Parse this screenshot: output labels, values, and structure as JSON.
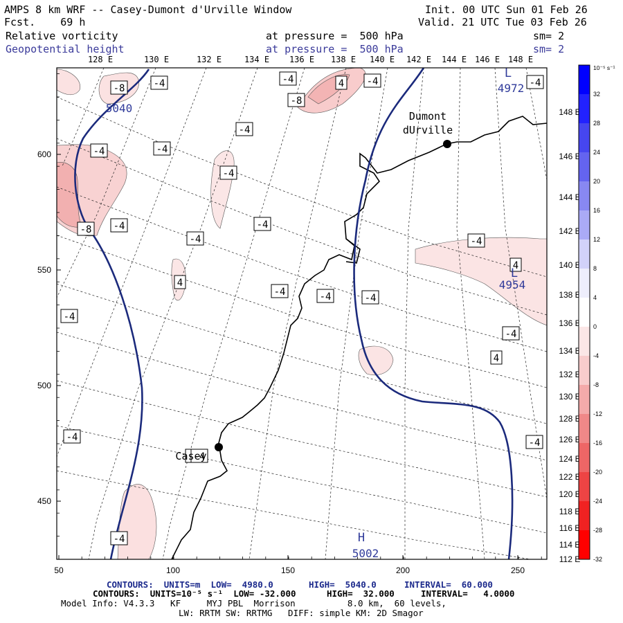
{
  "header": {
    "title": "AMPS 8 km WRF -- Casey-Dumont d'Urville Window",
    "fcst": "Fcst.    69 h",
    "init": "Init. 00 UTC Sun 01 Feb 26",
    "valid": "Valid. 21 UTC Tue 03 Feb 26",
    "field1_name": "Relative vorticity",
    "field1_pressure": "at pressure =  500 hPa",
    "field1_sm": "sm= 2",
    "field2_name": "Geopotential height",
    "field2_pressure": "at pressure =  500 hPa",
    "field2_sm": "sm= 2"
  },
  "map": {
    "x_axis_ticks": [
      "50",
      "100",
      "150",
      "200",
      "250"
    ],
    "y_axis_ticks": [
      "450",
      "500",
      "550",
      "600"
    ],
    "top_lon_labels": [
      "128 E",
      "130 E",
      "132 E",
      "134 E",
      "136 E",
      "138 E",
      "140 E",
      "142 E",
      "144 E",
      "146 E",
      "148 E"
    ],
    "right_lat_labels": [
      "148 E",
      "146 E",
      "144 E",
      "142 E",
      "140 E",
      "138 E",
      "136 E",
      "134 E",
      "132 E",
      "130 E",
      "128 E",
      "126 E",
      "124 E",
      "122 E",
      "120 E",
      "118 E",
      "116 E",
      "114 E",
      "112 E"
    ],
    "stations": [
      {
        "name_line1": "Dumont",
        "name_line2": "dUrville"
      },
      {
        "name_line1": "Casey"
      }
    ],
    "height_labels": [
      {
        "text": "5040",
        "color": "#2f3a9a"
      },
      {
        "text": "4972",
        "color": "#2f3a9a"
      },
      {
        "text": "4954",
        "color": "#2f3a9a"
      },
      {
        "text": "5002",
        "color": "#2f3a9a"
      }
    ],
    "extrema_marks": [
      {
        "text": "L",
        "color": "#2f3a9a"
      },
      {
        "text": "L",
        "color": "#2f3a9a"
      },
      {
        "text": "H",
        "color": "#2f3a9a"
      }
    ],
    "vorticity_labels": [
      "-8",
      "-4",
      "-4",
      "-8",
      "-4",
      "-4",
      "-4",
      "4",
      "-4",
      "-4",
      "-4",
      "-8",
      "-4",
      "-4",
      "-4",
      "-4",
      "4",
      "4",
      "-4",
      "-4",
      "-4",
      "-4",
      "-4",
      "4",
      "-4",
      "-4",
      "-4",
      "-4",
      "-4",
      "-4"
    ]
  },
  "colorbar": {
    "unit": "10⁻⁵ s⁻¹",
    "labels": [
      "32",
      "28",
      "24",
      "20",
      "16",
      "12",
      "8",
      "4",
      "0",
      "-4",
      "-8",
      "-12",
      "-16",
      "-20",
      "-24",
      "-28",
      "-32"
    ],
    "colors": [
      "#0000ff",
      "#2222ff",
      "#4646f0",
      "#6464f0",
      "#8888f2",
      "#aaaaf6",
      "#d2d2fa",
      "#eeeefc",
      "#ffffff",
      "#fbe6e6",
      "#f8cccc",
      "#f4aaaa",
      "#f08888",
      "#ee6666",
      "#ee4444",
      "#f02222",
      "#ff0000"
    ]
  },
  "footer": {
    "line1_a": "CONTOURS:  UNITS=m  LOW=  4980.0",
    "line1_b": "HIGH=  5040.0",
    "line1_c": "INTERVAL=  60.000",
    "line2_a": "CONTOURS:  UNITS=10⁻⁵ s⁻¹  LOW= -32.000",
    "line2_b": "HIGH=  32.000",
    "line2_c": "INTERVAL=   4.0000",
    "line3": "Model Info: V4.3.3   KF     MYJ PBL  Morrison          8.0 km,  60 levels,",
    "line4": "LW: RRTM SW: RRTMG   DIFF: simple KM: 2D Smagor"
  }
}
